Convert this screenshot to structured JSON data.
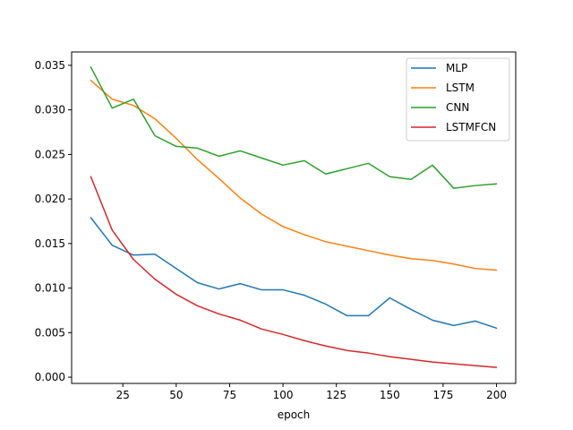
{
  "chart_data": {
    "type": "line",
    "title": "",
    "xlabel": "epoch",
    "ylabel": "",
    "xlim": [
      1,
      209
    ],
    "ylim": [
      -0.0007,
      0.0365
    ],
    "xticks": [
      25,
      50,
      75,
      100,
      125,
      150,
      175,
      200
    ],
    "yticks": [
      0.0,
      0.005,
      0.01,
      0.015,
      0.02,
      0.025,
      0.03,
      0.035
    ],
    "ytick_labels": [
      "0.000",
      "0.005",
      "0.010",
      "0.015",
      "0.020",
      "0.025",
      "0.030",
      "0.035"
    ],
    "grid": false,
    "legend_position": "top-right",
    "x": [
      10,
      20,
      30,
      40,
      50,
      60,
      70,
      80,
      90,
      100,
      110,
      120,
      130,
      140,
      150,
      160,
      170,
      180,
      190,
      200
    ],
    "series": [
      {
        "name": "MLP",
        "color": "#1f77b4",
        "values": [
          0.0179,
          0.0148,
          0.0137,
          0.0138,
          0.0122,
          0.0106,
          0.0099,
          0.0105,
          0.0098,
          0.0098,
          0.0092,
          0.0082,
          0.0069,
          0.0069,
          0.0089,
          0.0076,
          0.0064,
          0.0058,
          0.0063,
          0.0055
        ]
      },
      {
        "name": "LSTM",
        "color": "#ff7f0e",
        "values": [
          0.0333,
          0.0312,
          0.0305,
          0.029,
          0.0268,
          0.0244,
          0.0223,
          0.0201,
          0.0183,
          0.0169,
          0.016,
          0.0152,
          0.0147,
          0.0142,
          0.0137,
          0.0133,
          0.0131,
          0.0127,
          0.0122,
          0.012
        ]
      },
      {
        "name": "CNN",
        "color": "#2ca02c",
        "values": [
          0.0348,
          0.0302,
          0.0312,
          0.0271,
          0.0259,
          0.0257,
          0.0248,
          0.0254,
          0.0246,
          0.0238,
          0.0243,
          0.0228,
          0.0234,
          0.024,
          0.0225,
          0.0222,
          0.0238,
          0.0212,
          0.0215,
          0.0217
        ]
      },
      {
        "name": "LSTMFCN",
        "color": "#d62728",
        "values": [
          0.0225,
          0.0165,
          0.0132,
          0.011,
          0.0093,
          0.008,
          0.0071,
          0.0064,
          0.0054,
          0.0048,
          0.0041,
          0.0035,
          0.003,
          0.0027,
          0.0023,
          0.002,
          0.0017,
          0.0015,
          0.0013,
          0.0011
        ]
      }
    ]
  }
}
